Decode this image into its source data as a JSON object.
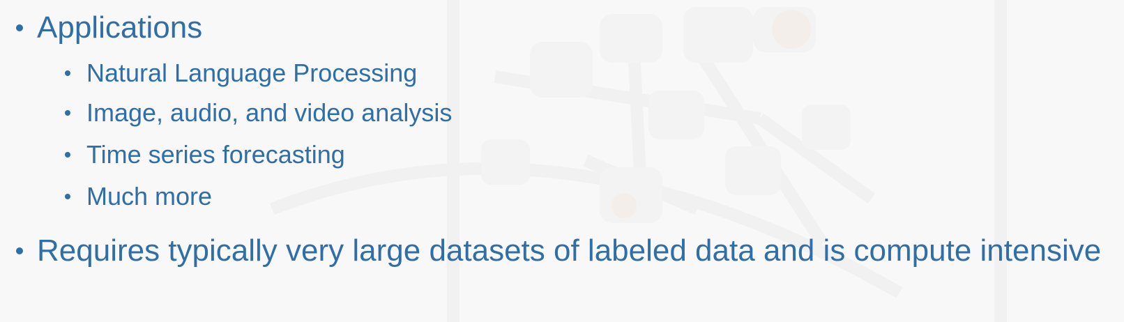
{
  "slide": {
    "bullets": [
      {
        "text": "Applications",
        "sub_bullets": [
          "Natural Language Processing",
          "Image, audio, and video analysis",
          "Time series forecasting",
          "Much more"
        ]
      },
      {
        "text": "Requires typically very large datasets of labeled data and is compute intensive"
      }
    ]
  },
  "colors": {
    "text": "#2f6ea6",
    "background": "#f8f8f8"
  }
}
